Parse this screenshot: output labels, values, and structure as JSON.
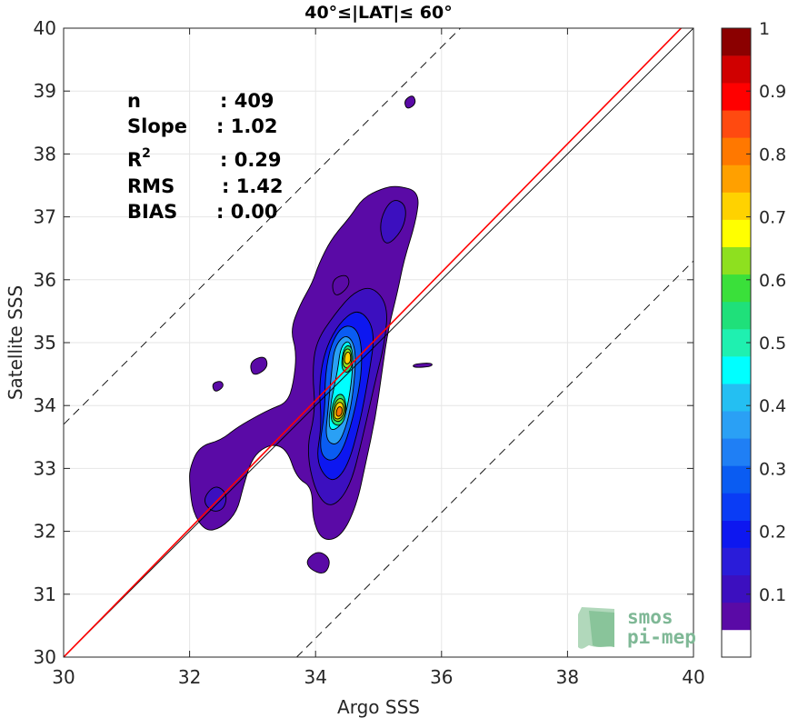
{
  "chart_data": {
    "type": "heatmap",
    "subtype": "density-contour-scatter",
    "title": "40°≤|LAT|≤ 60°",
    "xlabel": "Argo SSS",
    "ylabel": "Satellite SSS",
    "xlim": [
      30,
      40
    ],
    "ylim": [
      30,
      40
    ],
    "xticks": [
      "30",
      "32",
      "34",
      "36",
      "38",
      "40"
    ],
    "yticks": [
      "30",
      "31",
      "32",
      "33",
      "34",
      "35",
      "36",
      "37",
      "38",
      "39",
      "40"
    ],
    "grid": true,
    "stats": [
      {
        "label": "n",
        "value": ": 409"
      },
      {
        "label": "Slope",
        "value": ": 1.02"
      },
      {
        "label": "R²",
        "value": ": 0.29"
      },
      {
        "label": "RMS",
        "value": ": 1.42"
      },
      {
        "label": "BIAS",
        "value": ": 0.00"
      }
    ],
    "lines": [
      {
        "name": "identity",
        "style": "solid",
        "color": "#000000",
        "from": [
          30,
          30
        ],
        "to": [
          40,
          40
        ]
      },
      {
        "name": "fit",
        "style": "solid",
        "color": "#ff0000",
        "from": [
          30,
          30
        ],
        "to": [
          40,
          40.2
        ]
      },
      {
        "name": "upper-bound",
        "style": "dashed",
        "color": "#000000",
        "from": [
          30,
          33.7
        ],
        "to": [
          36.3,
          40
        ]
      },
      {
        "name": "lower-bound",
        "style": "dashed",
        "color": "#000000",
        "from": [
          33.7,
          30
        ],
        "to": [
          40,
          36.3
        ]
      }
    ],
    "colorbar": {
      "min": 0,
      "max": 1,
      "step": 0.05,
      "tick_labels": [
        "0.1",
        "0.2",
        "0.3",
        "0.4",
        "0.5",
        "0.6",
        "0.7",
        "0.8",
        "0.9",
        "1"
      ],
      "tick_values": [
        0.1,
        0.2,
        0.3,
        0.4,
        0.5,
        0.6,
        0.7,
        0.8,
        0.9,
        1.0
      ],
      "colors": [
        "#ffffff",
        "#5a0aa6",
        "#3c0fbf",
        "#2a1cd9",
        "#0d17f0",
        "#0a3cf5",
        "#0a5cf2",
        "#1f7ff5",
        "#2aa0f5",
        "#24bff2",
        "#00ffff",
        "#1ff0b0",
        "#1fe07a",
        "#3ae03a",
        "#8ee01f",
        "#ffff00",
        "#ffd200",
        "#ffa000",
        "#ff7800",
        "#ff4a10",
        "#ff0000",
        "#d00000",
        "#8b0000"
      ]
    },
    "density_levels": [
      {
        "level": 0.05,
        "blobs": [
          {
            "poly": [
              [
                32.0,
                33.0
              ],
              [
                32.15,
                33.35
              ],
              [
                32.5,
                33.45
              ],
              [
                32.75,
                33.65
              ],
              [
                33.1,
                33.85
              ],
              [
                33.3,
                33.95
              ],
              [
                33.55,
                34.05
              ],
              [
                33.65,
                34.35
              ],
              [
                33.7,
                34.85
              ],
              [
                33.6,
                35.2
              ],
              [
                33.75,
                35.6
              ],
              [
                33.95,
                35.95
              ],
              [
                34.05,
                36.25
              ],
              [
                34.25,
                36.65
              ],
              [
                34.55,
                37.0
              ],
              [
                34.75,
                37.3
              ],
              [
                35.05,
                37.45
              ],
              [
                35.3,
                37.5
              ],
              [
                35.65,
                37.4
              ],
              [
                35.6,
                36.95
              ],
              [
                35.4,
                36.3
              ],
              [
                35.3,
                35.8
              ],
              [
                35.15,
                35.2
              ],
              [
                35.05,
                34.5
              ],
              [
                34.95,
                33.8
              ],
              [
                34.8,
                33.1
              ],
              [
                34.65,
                32.4
              ],
              [
                34.4,
                31.9
              ],
              [
                34.1,
                31.85
              ],
              [
                33.95,
                32.2
              ],
              [
                33.95,
                32.7
              ],
              [
                33.7,
                32.85
              ],
              [
                33.55,
                33.3
              ],
              [
                33.3,
                33.4
              ],
              [
                33.0,
                33.2
              ],
              [
                32.85,
                32.7
              ],
              [
                32.75,
                32.3
              ],
              [
                32.5,
                32.05
              ],
              [
                32.25,
                32.0
              ],
              [
                32.05,
                32.3
              ],
              [
                32.0,
                32.75
              ]
            ]
          },
          {
            "poly": [
              [
                33.9,
                31.4
              ],
              [
                34.15,
                31.3
              ],
              [
                34.25,
                31.55
              ],
              [
                34.05,
                31.7
              ],
              [
                33.85,
                31.55
              ]
            ]
          },
          {
            "poly": [
              [
                35.45,
                38.7
              ],
              [
                35.6,
                38.8
              ],
              [
                35.55,
                38.95
              ],
              [
                35.4,
                38.85
              ]
            ]
          },
          {
            "poly": [
              [
                34.3,
                35.7
              ],
              [
                34.55,
                35.9
              ],
              [
                34.5,
                36.1
              ],
              [
                34.25,
                36.0
              ]
            ]
          },
          {
            "poly": [
              [
                33.0,
                34.45
              ],
              [
                33.25,
                34.6
              ],
              [
                33.2,
                34.8
              ],
              [
                32.95,
                34.7
              ]
            ]
          },
          {
            "poly": [
              [
                32.4,
                34.2
              ],
              [
                32.55,
                34.3
              ],
              [
                32.5,
                34.4
              ],
              [
                32.35,
                34.35
              ]
            ]
          },
          {
            "poly": [
              [
                35.55,
                34.6
              ],
              [
                35.85,
                34.62
              ],
              [
                35.85,
                34.68
              ],
              [
                35.55,
                34.66
              ]
            ]
          }
        ]
      },
      {
        "level": 0.1,
        "blobs": [
          {
            "poly": [
              [
                33.85,
                33.3
              ],
              [
                34.0,
                33.9
              ],
              [
                33.95,
                34.5
              ],
              [
                34.0,
                35.0
              ],
              [
                34.3,
                35.45
              ],
              [
                34.6,
                35.8
              ],
              [
                34.9,
                35.9
              ],
              [
                35.15,
                35.6
              ],
              [
                35.1,
                35.0
              ],
              [
                34.95,
                34.4
              ],
              [
                34.75,
                33.5
              ],
              [
                34.55,
                32.7
              ],
              [
                34.25,
                32.35
              ],
              [
                34.0,
                32.6
              ]
            ]
          },
          {
            "poly": [
              [
                32.2,
                32.5
              ],
              [
                32.4,
                32.75
              ],
              [
                32.6,
                32.6
              ],
              [
                32.55,
                32.35
              ],
              [
                32.35,
                32.3
              ]
            ]
          },
          {
            "poly": [
              [
                35.1,
                36.5
              ],
              [
                35.4,
                36.8
              ],
              [
                35.45,
                37.2
              ],
              [
                35.2,
                37.3
              ],
              [
                35.0,
                36.9
              ]
            ]
          }
        ]
      },
      {
        "level": 0.2,
        "blobs": [
          {
            "poly": [
              [
                34.0,
                33.1
              ],
              [
                34.1,
                33.7
              ],
              [
                34.05,
                34.3
              ],
              [
                34.15,
                34.9
              ],
              [
                34.4,
                35.35
              ],
              [
                34.7,
                35.55
              ],
              [
                34.95,
                35.2
              ],
              [
                34.85,
                34.5
              ],
              [
                34.7,
                33.7
              ],
              [
                34.5,
                33.0
              ],
              [
                34.25,
                32.75
              ]
            ]
          }
        ]
      },
      {
        "level": 0.3,
        "blobs": [
          {
            "poly": [
              [
                34.05,
                33.3
              ],
              [
                34.15,
                33.9
              ],
              [
                34.15,
                34.5
              ],
              [
                34.25,
                35.0
              ],
              [
                34.45,
                35.3
              ],
              [
                34.7,
                35.2
              ],
              [
                34.75,
                34.6
              ],
              [
                34.6,
                33.8
              ],
              [
                34.4,
                33.2
              ],
              [
                34.2,
                33.1
              ]
            ]
          }
        ]
      },
      {
        "level": 0.4,
        "blobs": [
          {
            "poly": [
              [
                34.15,
                33.45
              ],
              [
                34.2,
                33.95
              ],
              [
                34.25,
                34.5
              ],
              [
                34.3,
                34.95
              ],
              [
                34.5,
                35.15
              ],
              [
                34.65,
                34.9
              ],
              [
                34.6,
                34.2
              ],
              [
                34.5,
                33.7
              ],
              [
                34.35,
                33.35
              ]
            ]
          }
        ]
      },
      {
        "level": 0.5,
        "blobs": [
          {
            "poly": [
              [
                34.2,
                33.65
              ],
              [
                34.25,
                34.1
              ],
              [
                34.35,
                34.55
              ],
              [
                34.4,
                34.95
              ],
              [
                34.55,
                35.05
              ],
              [
                34.6,
                34.7
              ],
              [
                34.55,
                34.2
              ],
              [
                34.45,
                33.75
              ],
              [
                34.3,
                33.6
              ]
            ]
          }
        ]
      },
      {
        "level": 0.6,
        "blobs": [
          {
            "poly": [
              [
                34.22,
                33.75
              ],
              [
                34.3,
                34.15
              ],
              [
                34.45,
                34.2
              ],
              [
                34.5,
                33.9
              ],
              [
                34.4,
                33.65
              ]
            ]
          },
          {
            "poly": [
              [
                34.4,
                34.6
              ],
              [
                34.45,
                34.95
              ],
              [
                34.58,
                34.95
              ],
              [
                34.6,
                34.65
              ],
              [
                34.5,
                34.5
              ]
            ]
          }
        ]
      },
      {
        "level": 0.7,
        "blobs": [
          {
            "poly": [
              [
                34.25,
                33.8
              ],
              [
                34.32,
                34.1
              ],
              [
                34.45,
                34.12
              ],
              [
                34.48,
                33.88
              ],
              [
                34.38,
                33.72
              ]
            ]
          },
          {
            "poly": [
              [
                34.42,
                34.65
              ],
              [
                34.46,
                34.9
              ],
              [
                34.56,
                34.9
              ],
              [
                34.58,
                34.68
              ],
              [
                34.5,
                34.58
              ]
            ]
          }
        ]
      },
      {
        "level": 0.8,
        "blobs": [
          {
            "poly": [
              [
                34.28,
                33.82
              ],
              [
                34.33,
                34.05
              ],
              [
                34.44,
                34.05
              ],
              [
                34.45,
                33.86
              ],
              [
                34.36,
                33.77
              ]
            ]
          },
          {
            "poly": [
              [
                34.45,
                34.7
              ],
              [
                34.48,
                34.85
              ],
              [
                34.55,
                34.85
              ],
              [
                34.56,
                34.7
              ],
              [
                34.5,
                34.65
              ]
            ]
          }
        ]
      },
      {
        "level": 0.9,
        "blobs": [
          {
            "poly": [
              [
                34.32,
                33.85
              ],
              [
                34.35,
                33.98
              ],
              [
                34.42,
                33.98
              ],
              [
                34.42,
                33.87
              ],
              [
                34.37,
                33.82
              ]
            ]
          }
        ]
      }
    ]
  },
  "logo": {
    "line1": "smos",
    "line2": "pi-mep"
  }
}
